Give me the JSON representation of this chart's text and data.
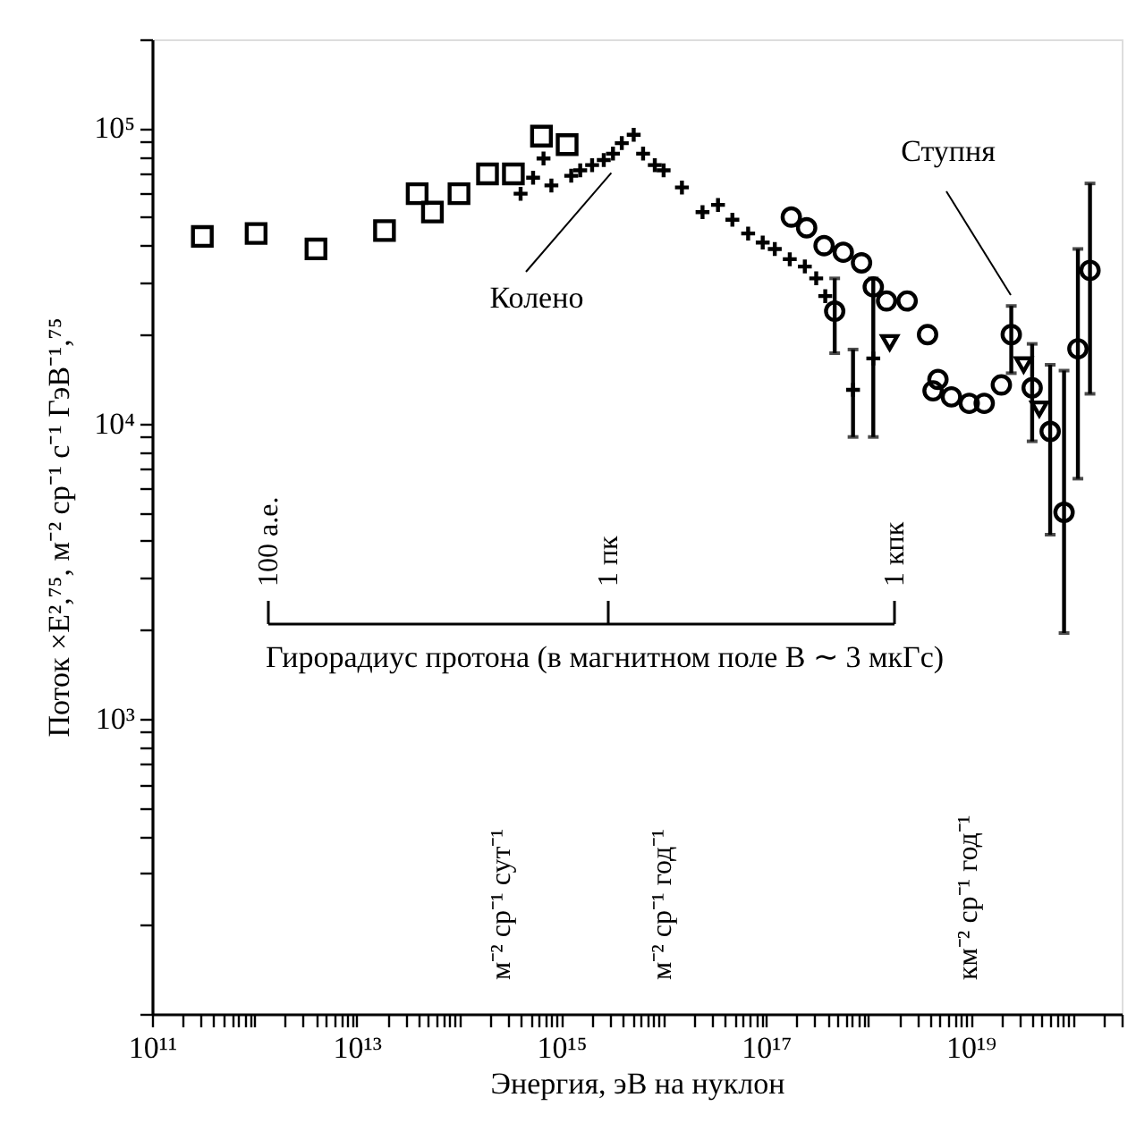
{
  "chart_data": {
    "type": "scatter",
    "xlabel": "Энергия, эВ на нуклон",
    "ylabel": "Поток ×E²,⁷⁵, м⁻² ср⁻¹ с⁻¹ ГэВ⁻¹,⁷⁵",
    "log": "xy",
    "grid": false,
    "xlim": [
      100000000000.0,
      3e+20
    ],
    "ylim": [
      100,
      200000
    ],
    "xticks": [
      {
        "value": 100000000000.0,
        "label": "10¹¹"
      },
      {
        "value": 200000000000.0,
        "label": null
      },
      {
        "value": 300000000000.0,
        "label": null
      },
      {
        "value": 400000000000.0,
        "label": null
      },
      {
        "value": 500000000000.0,
        "label": null
      },
      {
        "value": 600000000000.0,
        "label": null
      },
      {
        "value": 700000000000.0,
        "label": null
      },
      {
        "value": 800000000000.0,
        "label": null
      },
      {
        "value": 900000000000.0,
        "label": null
      },
      {
        "value": 1000000000000.0,
        "label": null
      },
      {
        "value": 2000000000000.0,
        "label": null
      },
      {
        "value": 3000000000000.0,
        "label": null
      },
      {
        "value": 4000000000000.0,
        "label": null
      },
      {
        "value": 5000000000000.0,
        "label": null
      },
      {
        "value": 6000000000000.0,
        "label": null
      },
      {
        "value": 7000000000000.0,
        "label": null
      },
      {
        "value": 8000000000000.0,
        "label": null
      },
      {
        "value": 9000000000000.0,
        "label": null
      },
      {
        "value": 10000000000000.0,
        "label": "10¹³"
      },
      {
        "value": 20000000000000.0,
        "label": null
      },
      {
        "value": 30000000000000.0,
        "label": null
      },
      {
        "value": 40000000000000.0,
        "label": null
      },
      {
        "value": 50000000000000.0,
        "label": null
      },
      {
        "value": 60000000000000.0,
        "label": null
      },
      {
        "value": 70000000000000.0,
        "label": null
      },
      {
        "value": 80000000000000.0,
        "label": null
      },
      {
        "value": 90000000000000.0,
        "label": null
      },
      {
        "value": 100000000000000.0,
        "label": null
      },
      {
        "value": 200000000000000.0,
        "label": null
      },
      {
        "value": 300000000000000.0,
        "label": null
      },
      {
        "value": 400000000000000.0,
        "label": null
      },
      {
        "value": 500000000000000.0,
        "label": null
      },
      {
        "value": 600000000000000.0,
        "label": null
      },
      {
        "value": 700000000000000.0,
        "label": null
      },
      {
        "value": 800000000000000.0,
        "label": null
      },
      {
        "value": 900000000000000.0,
        "label": null
      },
      {
        "value": 1000000000000000.0,
        "label": "10¹⁵"
      },
      {
        "value": 2000000000000000.0,
        "label": null
      },
      {
        "value": 3000000000000000.0,
        "label": null
      },
      {
        "value": 4000000000000000.0,
        "label": null
      },
      {
        "value": 5000000000000000.0,
        "label": null
      },
      {
        "value": 6000000000000000.0,
        "label": null
      },
      {
        "value": 7000000000000000.0,
        "label": null
      },
      {
        "value": 8000000000000000.0,
        "label": null
      },
      {
        "value": 9000000000000000.0,
        "label": null
      },
      {
        "value": 1e+16,
        "label": null
      },
      {
        "value": 2e+16,
        "label": null
      },
      {
        "value": 3e+16,
        "label": null
      },
      {
        "value": 4e+16,
        "label": null
      },
      {
        "value": 5e+16,
        "label": null
      },
      {
        "value": 6e+16,
        "label": null
      },
      {
        "value": 7e+16,
        "label": null
      },
      {
        "value": 8e+16,
        "label": null
      },
      {
        "value": 9e+16,
        "label": null
      },
      {
        "value": 1e+17,
        "label": "10¹⁷"
      },
      {
        "value": 2e+17,
        "label": null
      },
      {
        "value": 3e+17,
        "label": null
      },
      {
        "value": 4e+17,
        "label": null
      },
      {
        "value": 5e+17,
        "label": null
      },
      {
        "value": 6e+17,
        "label": null
      },
      {
        "value": 7e+17,
        "label": null
      },
      {
        "value": 8e+17,
        "label": null
      },
      {
        "value": 9e+17,
        "label": null
      },
      {
        "value": 1e+18,
        "label": null
      },
      {
        "value": 2e+18,
        "label": null
      },
      {
        "value": 3e+18,
        "label": null
      },
      {
        "value": 4e+18,
        "label": null
      },
      {
        "value": 5e+18,
        "label": null
      },
      {
        "value": 6e+18,
        "label": null
      },
      {
        "value": 7e+18,
        "label": null
      },
      {
        "value": 8e+18,
        "label": null
      },
      {
        "value": 9e+18,
        "label": null
      },
      {
        "value": 1e+19,
        "label": "10¹⁹"
      },
      {
        "value": 2e+19,
        "label": null
      },
      {
        "value": 3e+19,
        "label": null
      },
      {
        "value": 4e+19,
        "label": null
      },
      {
        "value": 5e+19,
        "label": null
      },
      {
        "value": 6e+19,
        "label": null
      },
      {
        "value": 7e+19,
        "label": null
      },
      {
        "value": 8e+19,
        "label": null
      },
      {
        "value": 9e+19,
        "label": null
      },
      {
        "value": 1e+20,
        "label": null
      },
      {
        "value": 2e+20,
        "label": null
      },
      {
        "value": 3e+20,
        "label": null
      }
    ],
    "yticks": [
      {
        "value": 100,
        "label": null
      },
      {
        "value": 200,
        "label": null
      },
      {
        "value": 300,
        "label": null
      },
      {
        "value": 400,
        "label": null
      },
      {
        "value": 500,
        "label": null
      },
      {
        "value": 600,
        "label": null
      },
      {
        "value": 700,
        "label": null
      },
      {
        "value": 800,
        "label": null
      },
      {
        "value": 900,
        "label": null
      },
      {
        "value": 1000,
        "label": "10³"
      },
      {
        "value": 2000,
        "label": null
      },
      {
        "value": 3000,
        "label": null
      },
      {
        "value": 4000,
        "label": null
      },
      {
        "value": 5000,
        "label": null
      },
      {
        "value": 6000,
        "label": null
      },
      {
        "value": 7000,
        "label": null
      },
      {
        "value": 8000,
        "label": null
      },
      {
        "value": 9000,
        "label": null
      },
      {
        "value": 10000,
        "label": "10⁴"
      },
      {
        "value": 20000,
        "label": null
      },
      {
        "value": 30000,
        "label": null
      },
      {
        "value": 40000,
        "label": null
      },
      {
        "value": 50000,
        "label": null
      },
      {
        "value": 60000,
        "label": null
      },
      {
        "value": 70000,
        "label": null
      },
      {
        "value": 80000,
        "label": null
      },
      {
        "value": 90000,
        "label": null
      },
      {
        "value": 100000,
        "label": "10⁵"
      },
      {
        "value": 200000,
        "label": null
      }
    ],
    "series": [
      {
        "color": "#000000",
        "marker": "square",
        "x": [
          310000000000.0,
          1040000000000.0,
          4000000000000.0,
          18700000000000.0,
          39000000000000.0,
          55000000000000.0,
          100000000000000.0,
          190000000000000.0,
          340000000000000.0,
          640000000000000.0,
          1140000000000000.0
        ],
        "values": [
          43000,
          44000,
          39000,
          45000,
          60000,
          52000,
          60000,
          70000,
          70000,
          94000,
          88000
        ]
      },
      {
        "color": "#000000",
        "marker": "cross",
        "x": [
          400000000000000.0,
          530000000000000.0,
          670000000000000.0,
          800000000000000.0,
          1250000000000000.0,
          1530000000000000.0,
          2000000000000000.0,
          2600000000000000.0,
          3200000000000000.0,
          3900000000000000.0,
          5100000000000000.0,
          6300000000000000.0,
          8200000000000000.0,
          1e+16,
          1.51e+16,
          2.4e+16,
          3.4e+16,
          4.7e+16,
          6.7e+16,
          9.3e+16,
          1.22e+17,
          1.71e+17,
          2.4e+17,
          3.1e+17,
          3.8e+17,
          7.1e+17,
          1.12e+18
        ],
        "values": [
          60000,
          68000,
          79000,
          64000,
          69000,
          72000,
          75000,
          78000,
          82000,
          89000,
          95000,
          82000,
          75000,
          72000,
          63000,
          52000,
          55000,
          49000,
          44000,
          41000,
          39000,
          36000,
          34000,
          31000,
          27000,
          13000,
          16600
        ],
        "errors": [
          null,
          null,
          null,
          null,
          null,
          null,
          null,
          null,
          null,
          null,
          null,
          null,
          null,
          null,
          null,
          null,
          null,
          null,
          null,
          null,
          null,
          null,
          null,
          null,
          null,
          [
            9000,
            17800
          ],
          [
            9000,
            31000
          ]
        ]
      },
      {
        "color": "#000000",
        "marker": "circle",
        "x": [
          1.77e+17,
          2.5e+17,
          3.7e+17,
          4.7e+17,
          5.7e+17,
          8.6e+17,
          1.12e+18,
          1.51e+18,
          2.4e+18,
          3.8e+18,
          4.3e+18,
          4.8e+18,
          6.5e+18,
          9.7e+18,
          1.36e+19,
          2e+19,
          2.5e+19,
          4e+19,
          6e+19,
          8.2e+19,
          1.12e+20,
          1.47e+20
        ],
        "values": [
          50000,
          46000,
          40000,
          24000,
          38000,
          35000,
          29000,
          26000,
          26000,
          20000,
          12900,
          14100,
          12300,
          11700,
          11700,
          13500,
          20000,
          13200,
          9400,
          5000,
          17900,
          33000
        ],
        "errors": [
          null,
          null,
          null,
          [
            17300,
            31000
          ],
          null,
          null,
          null,
          null,
          null,
          null,
          null,
          null,
          null,
          null,
          null,
          null,
          [
            14800,
            25000
          ],
          [
            8700,
            18600
          ],
          [
            4200,
            15800
          ],
          [
            1950,
            15100
          ],
          [
            6500,
            39000
          ],
          [
            12600,
            65000
          ]
        ]
      },
      {
        "color": "#000000",
        "marker": "triangle",
        "x": [
          1.62e+18,
          3.3e+19,
          4.7e+19
        ],
        "values": [
          18800,
          15800,
          11200
        ]
      }
    ],
    "annotations": [
      "Колено",
      "Ступня",
      "100 а.е.",
      "1 пк",
      "1 кпк",
      "м⁻² ср⁻¹ сут⁻¹",
      "м⁻² ср⁻¹ год⁻¹",
      "км⁻² ср⁻¹ год⁻¹",
      "Гирорадиус протона (в магнитном поле B ∼ 3 мкГс)"
    ]
  }
}
